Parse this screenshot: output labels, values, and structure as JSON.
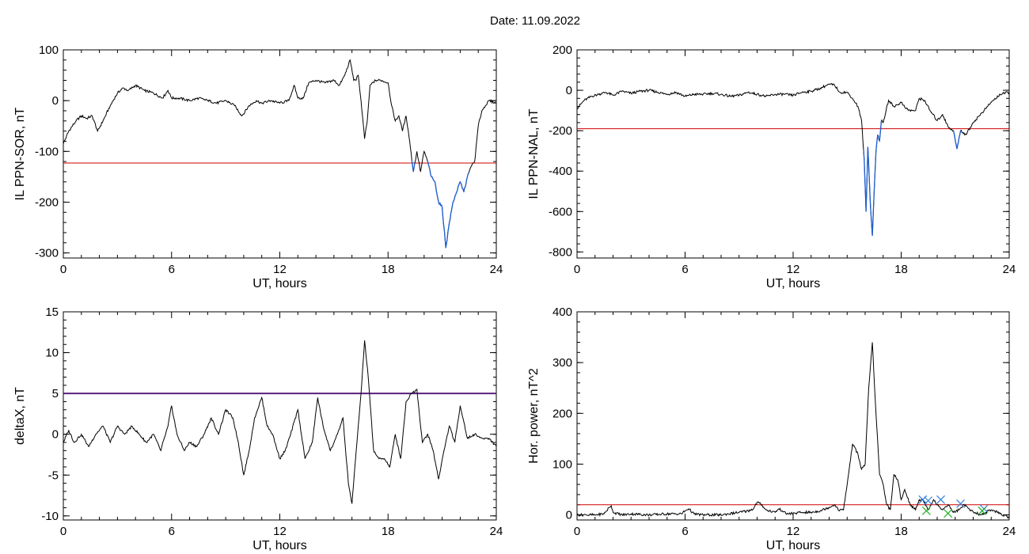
{
  "title": "Date:  11.09.2022",
  "chart_data": [
    {
      "type": "line",
      "xlabel": "UT, hours",
      "ylabel": "IL PPN-SOR, nT",
      "xlim": [
        0,
        24
      ],
      "ylim": [
        -310,
        100
      ],
      "xticks": [
        0,
        6,
        12,
        18,
        24
      ],
      "yticks": [
        100,
        0,
        -100,
        -200,
        -300
      ],
      "threshold": -123,
      "threshold_color": "#d00000",
      "line_color": "#000000",
      "highlight_color": "#1f5fd0",
      "x": [
        0,
        0.3,
        0.7,
        1,
        1.3,
        1.6,
        1.9,
        2.2,
        2.6,
        3,
        3.3,
        3.6,
        4,
        4.5,
        5,
        5.5,
        5.8,
        6,
        6.4,
        7,
        7.5,
        8,
        8.5,
        9,
        9.5,
        9.9,
        10.3,
        10.7,
        11,
        11.5,
        12,
        12.5,
        12.8,
        13,
        13.3,
        13.6,
        14,
        14.5,
        15,
        15.3,
        15.6,
        15.9,
        16.1,
        16.2,
        16.35,
        16.5,
        16.7,
        16.85,
        17,
        17.3,
        17.6,
        18,
        18.2,
        18.4,
        18.6,
        18.8,
        19,
        19.2,
        19.4,
        19.6,
        19.8,
        20,
        20.2,
        20.4,
        20.6,
        20.8,
        21,
        21.2,
        21.4,
        21.6,
        21.8,
        22,
        22.2,
        22.4,
        22.6,
        22.8,
        23,
        23.2,
        23.4,
        23.6,
        24
      ],
      "y": [
        -85,
        -60,
        -40,
        -30,
        -35,
        -30,
        -60,
        -40,
        -10,
        15,
        25,
        20,
        30,
        20,
        15,
        5,
        20,
        5,
        5,
        0,
        5,
        0,
        -5,
        0,
        -10,
        -30,
        -10,
        0,
        -5,
        0,
        -5,
        0,
        30,
        5,
        5,
        35,
        40,
        35,
        40,
        30,
        50,
        80,
        40,
        40,
        50,
        0,
        -75,
        -40,
        30,
        40,
        40,
        35,
        -10,
        -40,
        -30,
        -60,
        -30,
        -80,
        -140,
        -100,
        -140,
        -100,
        -120,
        -150,
        -160,
        -200,
        -210,
        -290,
        -240,
        -200,
        -180,
        -160,
        -180,
        -150,
        -130,
        -120,
        -50,
        -20,
        -10,
        0,
        -5
      ],
      "highlight_ranges": [
        [
          19.3,
          19.5
        ],
        [
          20.2,
          22.5
        ]
      ]
    },
    {
      "type": "line",
      "xlabel": "UT, hours",
      "ylabel": "IL PPN-NAL, nT",
      "xlim": [
        0,
        24
      ],
      "ylim": [
        -830,
        200
      ],
      "xticks": [
        0,
        6,
        12,
        18,
        24
      ],
      "yticks": [
        200,
        0,
        -200,
        -400,
        -600,
        -800
      ],
      "threshold": -190,
      "threshold_color": "#d00000",
      "line_color": "#000000",
      "highlight_color": "#1f5fd0",
      "x": [
        0,
        0.4,
        0.8,
        1.2,
        1.6,
        2,
        2.5,
        3,
        3.5,
        4,
        4.5,
        5,
        5.5,
        6,
        6.5,
        7,
        7.5,
        8,
        8.5,
        9,
        9.5,
        10,
        10.5,
        11,
        11.5,
        12,
        12.5,
        13,
        13.5,
        14,
        14.3,
        14.6,
        15,
        15.3,
        15.6,
        15.8,
        15.95,
        16.05,
        16.15,
        16.3,
        16.4,
        16.5,
        16.6,
        16.7,
        16.8,
        16.9,
        17,
        17.3,
        17.6,
        18,
        18.4,
        18.8,
        19,
        19.3,
        19.6,
        20,
        20.3,
        20.6,
        20.9,
        21.1,
        21.3,
        21.6,
        22,
        22.5,
        23,
        23.5,
        24
      ],
      "y": [
        -90,
        -50,
        -30,
        -20,
        -10,
        -25,
        -5,
        -15,
        -5,
        0,
        -10,
        -20,
        -10,
        -30,
        -20,
        -20,
        -15,
        -20,
        -30,
        -25,
        -10,
        -20,
        -30,
        -20,
        -20,
        -25,
        -10,
        -5,
        10,
        30,
        25,
        -10,
        -10,
        -40,
        -80,
        -150,
        -350,
        -600,
        -280,
        -580,
        -720,
        -500,
        -300,
        -220,
        -250,
        -150,
        -160,
        -50,
        -80,
        -60,
        -100,
        -100,
        -40,
        -50,
        -100,
        -150,
        -120,
        -180,
        -200,
        -290,
        -200,
        -220,
        -160,
        -110,
        -60,
        -20,
        -10
      ],
      "highlight_ranges": [
        [
          15.9,
          16.95
        ],
        [
          20.9,
          21.3
        ]
      ]
    },
    {
      "type": "line",
      "xlabel": "UT, hours",
      "ylabel": "deltaX, nT",
      "xlim": [
        0,
        24
      ],
      "ylim": [
        -10.5,
        15
      ],
      "xticks": [
        0,
        6,
        12,
        18,
        24
      ],
      "yticks": [
        15,
        10,
        5,
        0,
        -5,
        -10
      ],
      "threshold": 5,
      "threshold_color": "#5a2080",
      "line_color": "#000000",
      "x": [
        0,
        0.3,
        0.6,
        1,
        1.4,
        1.8,
        2.2,
        2.6,
        3,
        3.4,
        3.8,
        4.2,
        4.6,
        5,
        5.4,
        5.8,
        6,
        6.3,
        6.7,
        7,
        7.4,
        7.8,
        8.2,
        8.6,
        9,
        9.4,
        9.7,
        10,
        10.3,
        10.6,
        11,
        11.3,
        11.6,
        12,
        12.3,
        12.6,
        13,
        13.4,
        13.8,
        14.1,
        14.4,
        14.8,
        15.2,
        15.5,
        15.8,
        16,
        16.2,
        16.5,
        16.7,
        16.9,
        17.2,
        17.5,
        17.8,
        18.1,
        18.4,
        18.7,
        19,
        19.3,
        19.6,
        19.9,
        20.2,
        20.5,
        20.8,
        21.1,
        21.4,
        21.7,
        22,
        22.4,
        22.8,
        23.2,
        23.6,
        24
      ],
      "y": [
        -1,
        0.5,
        -1,
        0,
        -1.5,
        0,
        1,
        -1,
        1,
        0,
        1,
        0,
        -1,
        0,
        -2,
        1,
        3.5,
        0,
        -2,
        -1,
        -1.5,
        0,
        2,
        0,
        3,
        2,
        -1,
        -5,
        -2,
        2,
        4.5,
        1,
        0,
        -3,
        -2,
        0,
        3,
        -3,
        -1,
        4.5,
        1,
        -2,
        0,
        2,
        -6,
        -8.5,
        -3,
        5,
        11.5,
        7,
        -2,
        -3,
        -3,
        -4,
        0,
        -3,
        4,
        5,
        5.5,
        -1,
        0,
        -2,
        -5.5,
        -2,
        1,
        -1,
        3.5,
        -0.5,
        0,
        -0.5,
        -0.5,
        -1.5
      ]
    },
    {
      "type": "line",
      "xlabel": "UT, hours",
      "ylabel": "Hor. power, nT^2",
      "xlim": [
        0,
        24
      ],
      "ylim": [
        -10,
        400
      ],
      "xticks": [
        0,
        6,
        12,
        18,
        24
      ],
      "yticks": [
        400,
        300,
        200,
        100,
        0
      ],
      "threshold": 20,
      "threshold_color": "#d00000",
      "line_color": "#000000",
      "x": [
        0,
        0.5,
        1,
        1.5,
        1.8,
        1.9,
        2,
        2.5,
        3,
        4,
        5,
        5.8,
        6,
        6.2,
        6.5,
        7,
        8,
        9,
        9.5,
        9.8,
        10,
        10.2,
        10.5,
        11,
        11.2,
        11.4,
        11.6,
        12,
        12.5,
        13,
        13.5,
        14,
        14.3,
        14.5,
        14.8,
        15,
        15.3,
        15.6,
        15.8,
        16,
        16.2,
        16.4,
        16.6,
        16.8,
        17,
        17.2,
        17.4,
        17.6,
        17.8,
        18,
        18.2,
        18.5,
        18.8,
        19,
        19.2,
        19.5,
        19.8,
        20,
        20.3,
        20.6,
        20.9,
        21.2,
        21.5,
        21.8,
        22.1,
        22.4,
        22.7,
        23,
        23.5,
        24
      ],
      "y": [
        0,
        0,
        0,
        2,
        15,
        18,
        5,
        0,
        2,
        0,
        2,
        2,
        8,
        12,
        2,
        0,
        0,
        5,
        8,
        12,
        25,
        22,
        10,
        5,
        12,
        8,
        2,
        3,
        5,
        5,
        8,
        15,
        20,
        10,
        10,
        60,
        140,
        120,
        90,
        100,
        250,
        340,
        200,
        80,
        60,
        20,
        10,
        80,
        70,
        30,
        50,
        20,
        10,
        30,
        30,
        10,
        30,
        20,
        10,
        20,
        5,
        10,
        20,
        10,
        5,
        0,
        5,
        10,
        2,
        -5
      ],
      "markers": [
        {
          "x": 19.2,
          "y": 30,
          "color": "#2f80e0"
        },
        {
          "x": 19.5,
          "y": 28,
          "color": "#2f80e0"
        },
        {
          "x": 20.2,
          "y": 30,
          "color": "#2f80e0"
        },
        {
          "x": 21.3,
          "y": 22,
          "color": "#2f80e0"
        },
        {
          "x": 22.6,
          "y": 12,
          "color": "#2f80e0"
        },
        {
          "x": 19.4,
          "y": 8,
          "color": "#20b020"
        },
        {
          "x": 20.6,
          "y": 3,
          "color": "#20b020"
        },
        {
          "x": 22.5,
          "y": 8,
          "color": "#20b020"
        }
      ]
    }
  ]
}
